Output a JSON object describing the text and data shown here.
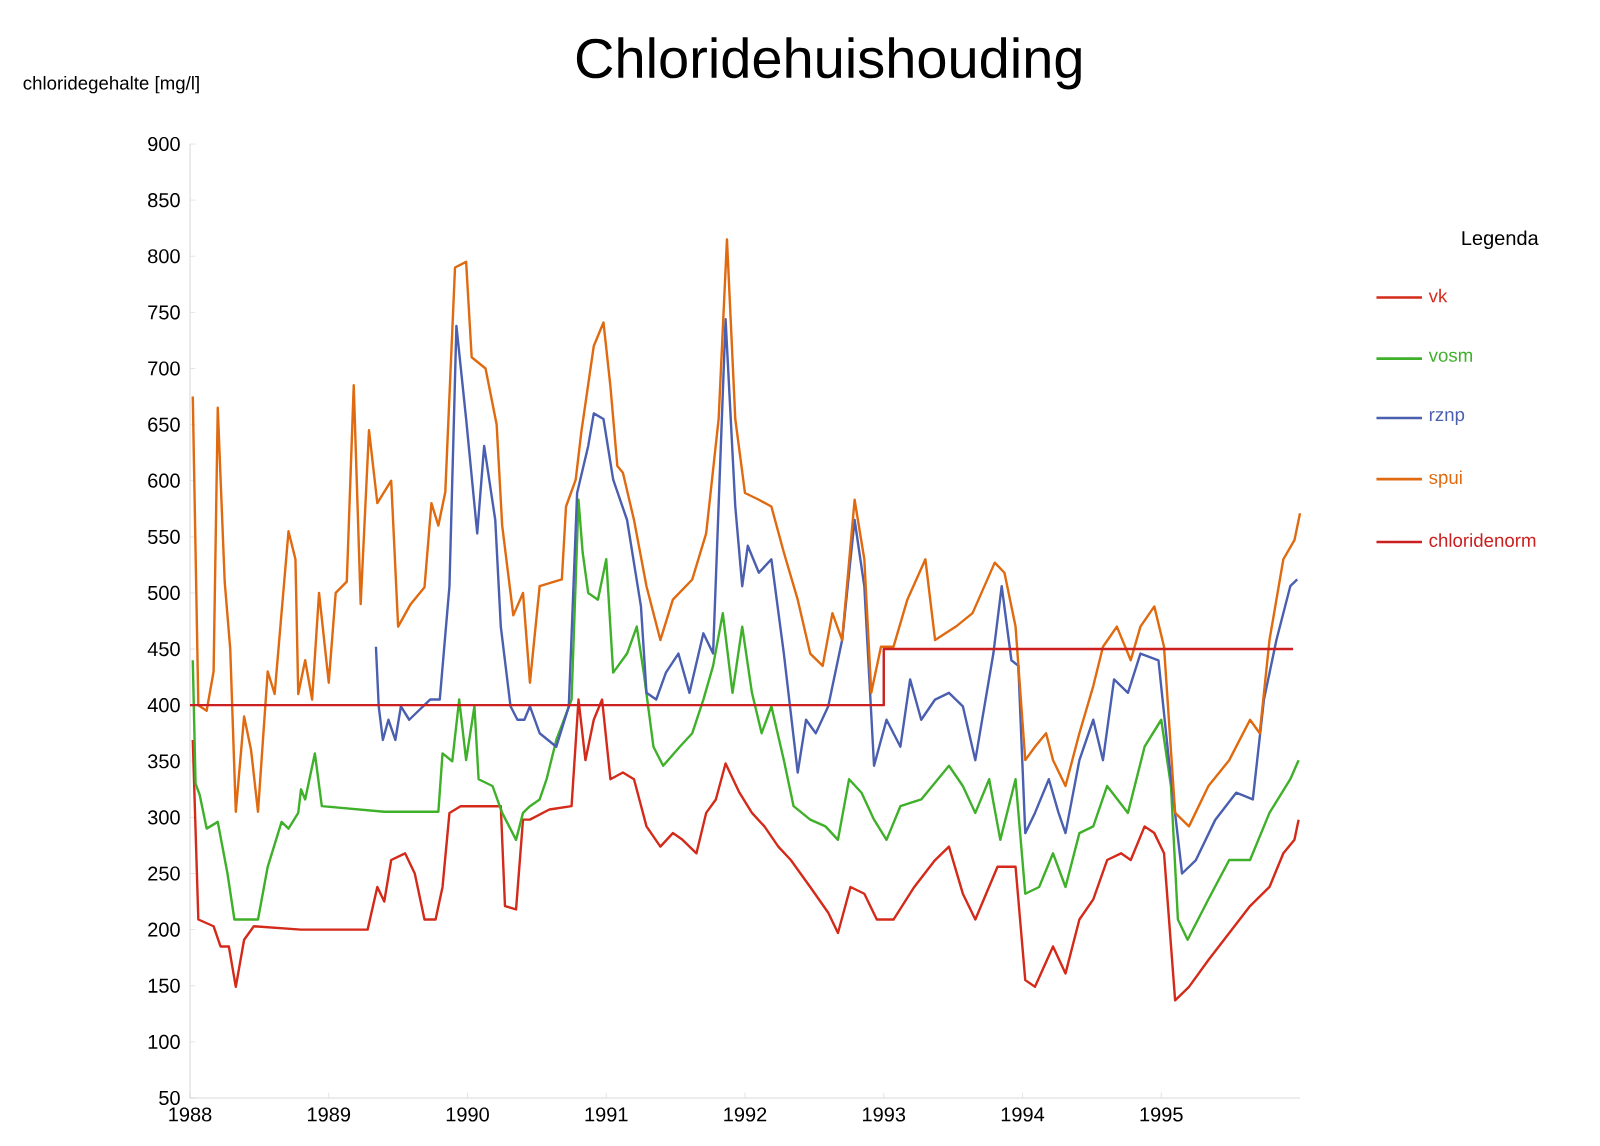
{
  "chart_data": {
    "type": "line",
    "title": "Chloridehuishouding",
    "ylabel": "chloridegehalte [mg/l]",
    "legend_title": "Legenda",
    "legend": "right",
    "marker": "none",
    "xlim": [
      1988,
      1996
    ],
    "xticks": [
      1988,
      1989,
      1990,
      1991,
      1992,
      1993,
      1994,
      1995
    ],
    "ylim": [
      50,
      900
    ],
    "yticks": [
      50,
      100,
      150,
      200,
      250,
      300,
      350,
      400,
      450,
      500,
      550,
      600,
      650,
      700,
      750,
      800,
      850,
      900
    ],
    "series": [
      {
        "name": "vk",
        "color": "#d42a1a",
        "x": [
          1988.02,
          1988.06,
          1988.17,
          1988.22,
          1988.28,
          1988.33,
          1988.39,
          1988.46,
          1988.8,
          1989.28,
          1989.35,
          1989.4,
          1989.45,
          1989.55,
          1989.62,
          1989.69,
          1989.77,
          1989.82,
          1989.87,
          1989.95,
          1990.24,
          1990.27,
          1990.35,
          1990.4,
          1990.45,
          1990.59,
          1990.75,
          1990.8,
          1990.85,
          1990.91,
          1990.97,
          1991.03,
          1991.12,
          1991.2,
          1991.29,
          1991.39,
          1991.48,
          1991.55,
          1991.65,
          1991.72,
          1991.79,
          1991.86,
          1991.96,
          1992.05,
          1992.14,
          1992.24,
          1992.33,
          1992.47,
          1992.6,
          1992.67,
          1992.76,
          1992.86,
          1992.95,
          1993.07,
          1993.22,
          1993.37,
          1993.47,
          1993.57,
          1993.66,
          1993.82,
          1993.95,
          1994.02,
          1994.09,
          1994.22,
          1994.31,
          1994.41,
          1994.51,
          1994.61,
          1994.71,
          1994.78,
          1994.88,
          1994.95,
          1995.02,
          1995.1,
          1995.2,
          1995.34,
          1995.49,
          1995.64,
          1995.78,
          1995.88,
          1995.96,
          1995.99
        ],
        "values": [
          369,
          209,
          203,
          185,
          185,
          149,
          191,
          203,
          200,
          200,
          238,
          225,
          262,
          268,
          250,
          209,
          209,
          238,
          304,
          310,
          310,
          221,
          218,
          298,
          298,
          307,
          310,
          405,
          351,
          387,
          405,
          334,
          340,
          334,
          292,
          274,
          286,
          280,
          268,
          304,
          316,
          348,
          322,
          304,
          292,
          274,
          262,
          238,
          215,
          197,
          238,
          232,
          209,
          209,
          238,
          262,
          274,
          232,
          209,
          256,
          256,
          155,
          149,
          185,
          161,
          209,
          227,
          262,
          268,
          262,
          292,
          286,
          268,
          137,
          149,
          173,
          197,
          221,
          238,
          268,
          280,
          298
        ]
      },
      {
        "name": "vosm",
        "color": "#3fb02a",
        "x": [
          1988.02,
          1988.04,
          1988.07,
          1988.12,
          1988.2,
          1988.27,
          1988.32,
          1988.42,
          1988.49,
          1988.56,
          1988.66,
          1988.71,
          1988.78,
          1988.8,
          1988.83,
          1988.9,
          1988.95,
          1989.4,
          1989.79,
          1989.82,
          1989.89,
          1989.94,
          1989.99,
          1990.05,
          1990.08,
          1990.18,
          1990.25,
          1990.35,
          1990.4,
          1990.45,
          1990.52,
          1990.57,
          1990.64,
          1990.75,
          1990.8,
          1990.83,
          1990.87,
          1990.94,
          1991.0,
          1991.05,
          1991.15,
          1991.22,
          1991.27,
          1991.34,
          1991.41,
          1991.53,
          1991.62,
          1991.7,
          1991.77,
          1991.84,
          1991.91,
          1991.98,
          1992.05,
          1992.12,
          1992.19,
          1992.28,
          1992.35,
          1992.47,
          1992.58,
          1992.67,
          1992.75,
          1992.84,
          1992.93,
          1993.02,
          1993.12,
          1993.27,
          1993.47,
          1993.57,
          1993.66,
          1993.76,
          1993.84,
          1993.95,
          1994.02,
          1994.12,
          1994.22,
          1994.31,
          1994.41,
          1994.51,
          1994.61,
          1994.76,
          1994.88,
          1995.0,
          1995.07,
          1995.12,
          1995.19,
          1995.34,
          1995.49,
          1995.64,
          1995.78,
          1995.93,
          1995.99
        ],
        "values": [
          440,
          330,
          320,
          290,
          296,
          250,
          209,
          209,
          209,
          256,
          296,
          290,
          304,
          325,
          316,
          357,
          310,
          305,
          305,
          357,
          350,
          405,
          351,
          399,
          334,
          328,
          304,
          280,
          304,
          310,
          316,
          334,
          369,
          405,
          583,
          536,
          500,
          494,
          530,
          429,
          446,
          470,
          429,
          363,
          346,
          363,
          375,
          405,
          435,
          482,
          411,
          470,
          411,
          375,
          399,
          351,
          310,
          298,
          292,
          280,
          334,
          322,
          298,
          280,
          310,
          316,
          346,
          328,
          304,
          334,
          280,
          334,
          232,
          238,
          268,
          238,
          286,
          292,
          328,
          304,
          363,
          387,
          328,
          209,
          191,
          227,
          262,
          262,
          304,
          334,
          351
        ]
      },
      {
        "name": "rznp",
        "color": "#4a5fb0",
        "x": [
          1989.34,
          1989.36,
          1989.39,
          1989.43,
          1989.48,
          1989.52,
          1989.58,
          1989.73,
          1989.8,
          1989.87,
          1989.92,
          1989.99,
          1990.07,
          1990.12,
          1990.2,
          1990.24,
          1990.31,
          1990.36,
          1990.41,
          1990.45,
          1990.52,
          1990.64,
          1990.73,
          1990.79,
          1990.87,
          1990.91,
          1990.98,
          1991.05,
          1991.15,
          1991.25,
          1991.29,
          1991.36,
          1991.43,
          1991.52,
          1991.6,
          1991.7,
          1991.77,
          1991.86,
          1991.93,
          1991.98,
          1992.02,
          1992.1,
          1992.19,
          1992.28,
          1992.38,
          1992.44,
          1992.51,
          1992.6,
          1992.7,
          1992.79,
          1992.86,
          1992.93,
          1993.02,
          1993.12,
          1993.19,
          1993.27,
          1993.37,
          1993.47,
          1993.57,
          1993.66,
          1993.79,
          1993.85,
          1993.92,
          1993.97,
          1994.02,
          1994.09,
          1994.19,
          1994.26,
          1994.31,
          1994.41,
          1994.51,
          1994.58,
          1994.66,
          1994.76,
          1994.85,
          1994.98,
          1995.05,
          1995.15,
          1995.25,
          1995.39,
          1995.54,
          1995.66,
          1995.74,
          1995.83,
          1995.93,
          1995.98
        ],
        "values": [
          452,
          399,
          369,
          387,
          369,
          399,
          387,
          405,
          405,
          506,
          738,
          655,
          553,
          631,
          565,
          470,
          399,
          387,
          387,
          399,
          375,
          363,
          399,
          589,
          631,
          660,
          655,
          601,
          565,
          488,
          411,
          405,
          429,
          446,
          411,
          464,
          446,
          744,
          577,
          506,
          542,
          518,
          530,
          446,
          340,
          387,
          375,
          399,
          458,
          565,
          506,
          346,
          387,
          363,
          423,
          387,
          405,
          411,
          399,
          351,
          446,
          506,
          440,
          435,
          286,
          304,
          334,
          304,
          286,
          351,
          387,
          351,
          423,
          411,
          446,
          440,
          357,
          250,
          262,
          298,
          322,
          316,
          405,
          458,
          506,
          512
        ]
      },
      {
        "name": "spui",
        "color": "#e06a10",
        "x": [
          1988.02,
          1988.06,
          1988.12,
          1988.17,
          1988.2,
          1988.25,
          1988.29,
          1988.33,
          1988.39,
          1988.44,
          1988.49,
          1988.56,
          1988.61,
          1988.71,
          1988.76,
          1988.78,
          1988.83,
          1988.88,
          1988.93,
          1989.0,
          1989.05,
          1989.13,
          1989.18,
          1989.23,
          1989.29,
          1989.35,
          1989.45,
          1989.5,
          1989.59,
          1989.69,
          1989.74,
          1989.79,
          1989.84,
          1989.91,
          1989.99,
          1990.03,
          1990.13,
          1990.21,
          1990.25,
          1990.33,
          1990.4,
          1990.45,
          1990.52,
          1990.68,
          1990.71,
          1990.78,
          1990.82,
          1990.91,
          1990.98,
          1991.03,
          1991.08,
          1991.12,
          1991.2,
          1991.29,
          1991.39,
          1991.48,
          1991.62,
          1991.72,
          1991.81,
          1991.87,
          1991.93,
          1992.0,
          1992.1,
          1992.19,
          1992.28,
          1992.38,
          1992.47,
          1992.56,
          1992.63,
          1992.7,
          1992.79,
          1992.86,
          1992.91,
          1992.98,
          1993.07,
          1993.17,
          1993.3,
          1993.37,
          1993.52,
          1993.64,
          1993.8,
          1993.87,
          1993.95,
          1994.02,
          1994.09,
          1994.17,
          1994.22,
          1994.31,
          1994.41,
          1994.51,
          1994.58,
          1994.68,
          1994.78,
          1994.85,
          1994.95,
          1995.02,
          1995.1,
          1995.2,
          1995.34,
          1995.49,
          1995.64,
          1995.71,
          1995.78,
          1995.88,
          1995.96,
          1996.0
        ],
        "values": [
          675,
          400,
          395,
          430,
          665,
          510,
          450,
          305,
          390,
          360,
          305,
          430,
          410,
          555,
          530,
          410,
          440,
          405,
          500,
          420,
          500,
          510,
          685,
          490,
          645,
          580,
          600,
          470,
          490,
          505,
          580,
          560,
          590,
          790,
          795,
          710,
          700,
          650,
          560,
          480,
          500,
          420,
          506,
          512,
          577,
          601,
          643,
          720,
          741,
          684,
          613,
          607,
          565,
          506,
          458,
          494,
          512,
          553,
          655,
          815,
          655,
          589,
          583,
          577,
          536,
          494,
          446,
          435,
          482,
          458,
          583,
          530,
          411,
          452,
          452,
          494,
          530,
          458,
          470,
          482,
          527,
          518,
          470,
          351,
          363,
          375,
          351,
          328,
          375,
          417,
          452,
          470,
          440,
          470,
          488,
          452,
          304,
          292,
          328,
          351,
          387,
          375,
          458,
          530,
          547,
          571
        ]
      },
      {
        "name": "chloridenorm",
        "type": "step",
        "color": "#cc1f1f",
        "x": [
          1988.0,
          1993.0,
          1995.95
        ],
        "values": [
          400,
          450,
          450
        ]
      }
    ]
  }
}
